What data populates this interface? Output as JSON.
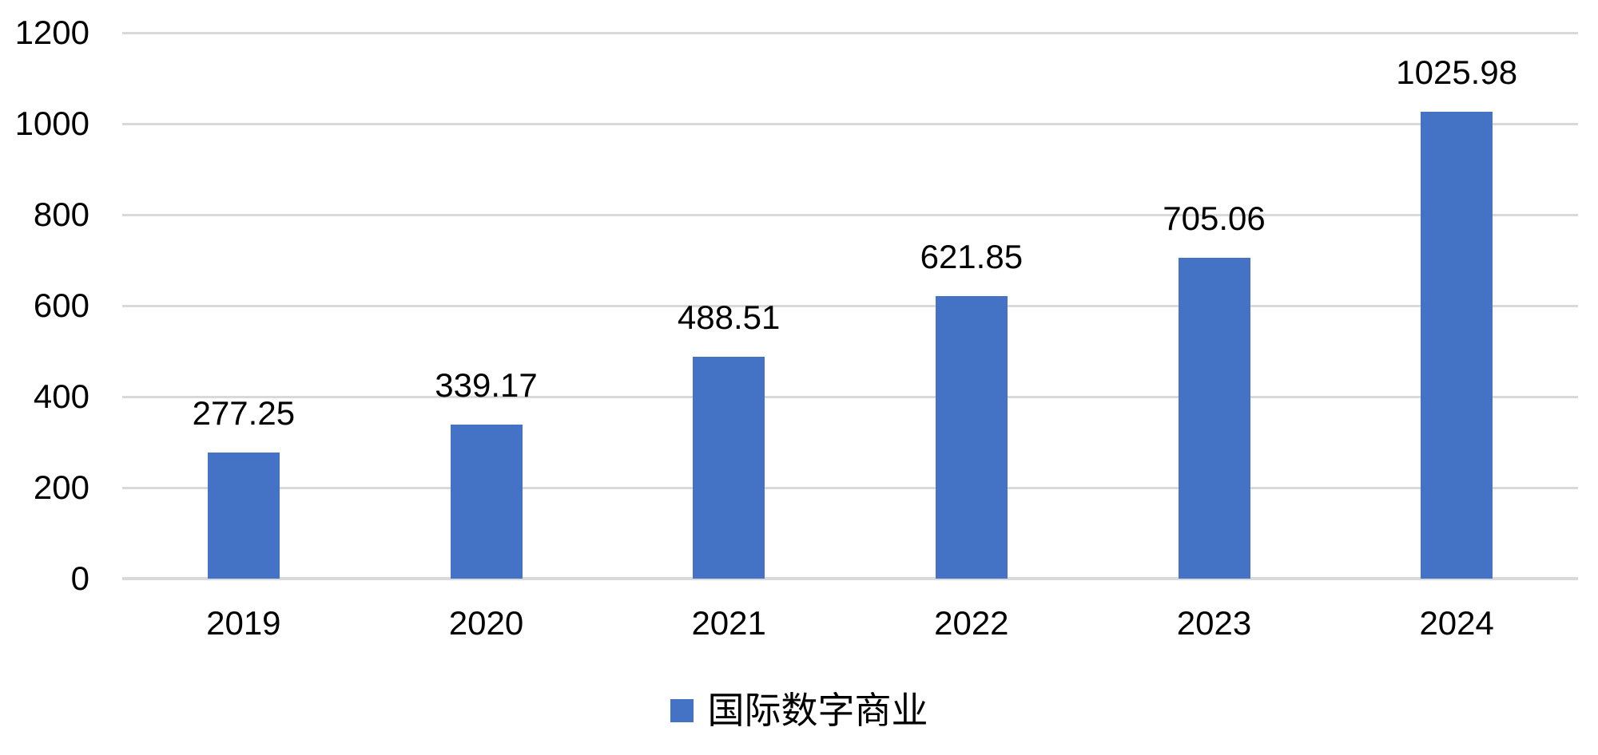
{
  "chart_data": {
    "type": "bar",
    "categories": [
      "2019",
      "2020",
      "2021",
      "2022",
      "2023",
      "2024"
    ],
    "series": [
      {
        "name": "国际数字商业",
        "values": [
          277.25,
          339.17,
          488.51,
          621.85,
          705.06,
          1025.98
        ]
      }
    ],
    "data_labels": [
      "277.25",
      "339.17",
      "488.51",
      "621.85",
      "705.06",
      "1025.98"
    ],
    "title": "",
    "xlabel": "",
    "ylabel": "",
    "ylim": [
      0,
      1200
    ],
    "yticks": [
      0,
      200,
      400,
      600,
      800,
      1000,
      1200
    ],
    "grid": "horizontal",
    "legend": {
      "position": "bottom",
      "label": "国际数字商业"
    },
    "colors": {
      "bar": "#4472C4",
      "gridline": "#D9D9D9",
      "axis_line": "#D9D9D9",
      "text": "#000000"
    }
  }
}
